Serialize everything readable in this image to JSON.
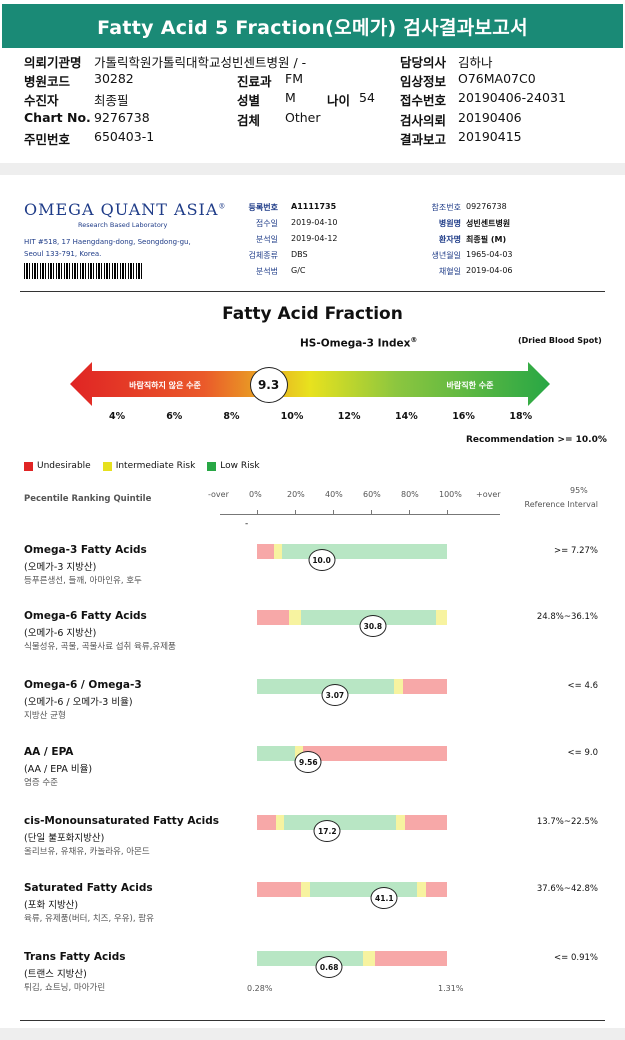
{
  "title": "Fatty Acid 5 Fraction(오메가) 검사결과보고서",
  "header": {
    "left": [
      {
        "k": "의뢰기관명",
        "v": "가톨릭학원가톨릭대학교성빈센트병원 / -"
      },
      {
        "k": "병원코드",
        "v": "30282"
      },
      {
        "k": "수진자",
        "v": "최종필"
      },
      {
        "k": "Chart No.",
        "v": "9276738"
      },
      {
        "k": "주민번호",
        "v": "650403-1"
      }
    ],
    "mid": [
      {
        "k": "진료과",
        "v": "FM"
      },
      {
        "k": "성별",
        "v": "M"
      },
      {
        "k": "검체",
        "v": "Other"
      }
    ],
    "age": {
      "k": "나이",
      "v": "54"
    },
    "right": [
      {
        "k": "담당의사",
        "v": "김하나"
      },
      {
        "k": "임상정보",
        "v": "O76MA07C0"
      },
      {
        "k": "접수번호",
        "v": "20190406-24031"
      },
      {
        "k": "검사의뢰",
        "v": "20190406"
      },
      {
        "k": "결과보고",
        "v": "20190415"
      }
    ]
  },
  "lab": {
    "name": "OMEGA QUANT ASIA",
    "tagline": "Research Based Laboratory",
    "address1": "HIT #518, 17 Haengdang-dong, Seongdong-gu,",
    "address2": "Seoul 133-791, Korea.",
    "info_left": [
      {
        "k": "등록번호",
        "v": "A1111735"
      },
      {
        "k": "접수일",
        "v": "2019-04-10"
      },
      {
        "k": "분석일",
        "v": "2019-04-12"
      },
      {
        "k": "검체종류",
        "v": "DBS"
      },
      {
        "k": "분석법",
        "v": "G/C"
      }
    ],
    "info_right": [
      {
        "k": "참조번호",
        "v": "09276738"
      },
      {
        "k": "병원명",
        "v": "성빈센트병원"
      },
      {
        "k": "환자명",
        "v": "최종필 (M)"
      },
      {
        "k": "생년월일",
        "v": "1965-04-03"
      },
      {
        "k": "채혈일",
        "v": "2019-04-06"
      }
    ]
  },
  "index": {
    "heading": "Fatty Acid Fraction",
    "name": "HS-Omega-3 Index",
    "reg": "®",
    "specimen": "(Dried Blood Spot)",
    "bad_label": "바람직하지 않은 수준",
    "good_label": "바람직한 수준",
    "value": "9.3",
    "value_num": 9.3,
    "scale": [
      "4%",
      "6%",
      "8%",
      "10%",
      "12%",
      "14%",
      "16%",
      "18%"
    ],
    "recommendation": "Recommendation  >= 10.0%"
  },
  "legend": [
    {
      "label": "Undesirable",
      "color": "#e02424"
    },
    {
      "label": "Intermediate Risk",
      "color": "#e6e01e"
    },
    {
      "label": "Low Risk",
      "color": "#28a745"
    }
  ],
  "percentile": {
    "label": "Pecentile Ranking Quintile",
    "ticks": [
      "-over",
      "0%",
      "20%",
      "40%",
      "60%",
      "80%",
      "100%",
      "+over"
    ],
    "ref_top": "95%",
    "ref_bottom": "Reference Interval"
  },
  "colors": {
    "red": "#f7a8a8",
    "yellow": "#f7f3a0",
    "green": "#b8e6c4",
    "accent": "#1a8a76"
  },
  "chart_data": {
    "type": "table",
    "rows": [
      {
        "name": "Omega-3 Fatty Acids",
        "sub": "(오메가-3 지방산)",
        "foods": "등푸른생선, 들깨, 아마인유, 호두",
        "value": "10.0",
        "pos": 0.34,
        "ref": ">= 7.27%",
        "segments": [
          [
            "red",
            0,
            0.09
          ],
          [
            "yellow",
            0.09,
            0.13
          ],
          [
            "green",
            0.13,
            1.0
          ]
        ]
      },
      {
        "name": "Omega-6 Fatty Acids",
        "sub": "(오메가-6 지방산)",
        "foods": "식물성유, 곡물, 곡물사료 섭취 육류,유제품",
        "value": "30.8",
        "pos": 0.61,
        "ref": "24.8%~36.1%",
        "segments": [
          [
            "red",
            0,
            0.17
          ],
          [
            "yellow",
            0.17,
            0.23
          ],
          [
            "green",
            0.23,
            0.94
          ],
          [
            "yellow",
            0.94,
            1.0
          ]
        ]
      },
      {
        "name": "Omega-6 / Omega-3",
        "sub": "(오메가-6 / 오메가-3 비율)",
        "foods": "지방산 균형",
        "value": "3.07",
        "pos": 0.41,
        "ref": "<= 4.6",
        "segments": [
          [
            "green",
            0,
            0.72
          ],
          [
            "yellow",
            0.72,
            0.77
          ],
          [
            "red",
            0.77,
            1.0
          ]
        ]
      },
      {
        "name": "AA / EPA",
        "sub": "(AA / EPA 비율)",
        "foods": "염증 수준",
        "value": "9.56",
        "pos": 0.27,
        "ref": "<= 9.0",
        "segments": [
          [
            "green",
            0,
            0.2
          ],
          [
            "yellow",
            0.2,
            0.24
          ],
          [
            "red",
            0.24,
            1.0
          ]
        ]
      },
      {
        "name": "cis-Monounsaturated Fatty Acids",
        "sub": "(단일 불포화지방산)",
        "foods": "올리브유, 유채유, 카놀라유, 아몬드",
        "value": "17.2",
        "pos": 0.37,
        "ref": "13.7%~22.5%",
        "segments": [
          [
            "red",
            0,
            0.1
          ],
          [
            "yellow",
            0.1,
            0.14
          ],
          [
            "green",
            0.14,
            0.73
          ],
          [
            "yellow",
            0.73,
            0.78
          ],
          [
            "red",
            0.78,
            1.0
          ]
        ]
      },
      {
        "name": "Saturated Fatty Acids",
        "sub": "(포화 지방산)",
        "foods": "육류, 유제품(버터, 치즈, 우유), 팜유",
        "value": "41.1",
        "pos": 0.67,
        "ref": "37.6%~42.8%",
        "segments": [
          [
            "red",
            0,
            0.23
          ],
          [
            "yellow",
            0.23,
            0.28
          ],
          [
            "green",
            0.28,
            0.84
          ],
          [
            "yellow",
            0.84,
            0.89
          ],
          [
            "red",
            0.89,
            1.0
          ]
        ]
      },
      {
        "name": "Trans Fatty Acids",
        "sub": "(트랜스 지방산)",
        "foods": "튀김, 쇼트닝, 마아가린",
        "value": "0.68",
        "pos": 0.38,
        "ref": "<= 0.91%",
        "segments": [
          [
            "green",
            0,
            0.56
          ],
          [
            "yellow",
            0.56,
            0.62
          ],
          [
            "red",
            0.62,
            1.0
          ]
        ]
      }
    ],
    "trans_min": "0.28%",
    "trans_max": "1.31%"
  }
}
